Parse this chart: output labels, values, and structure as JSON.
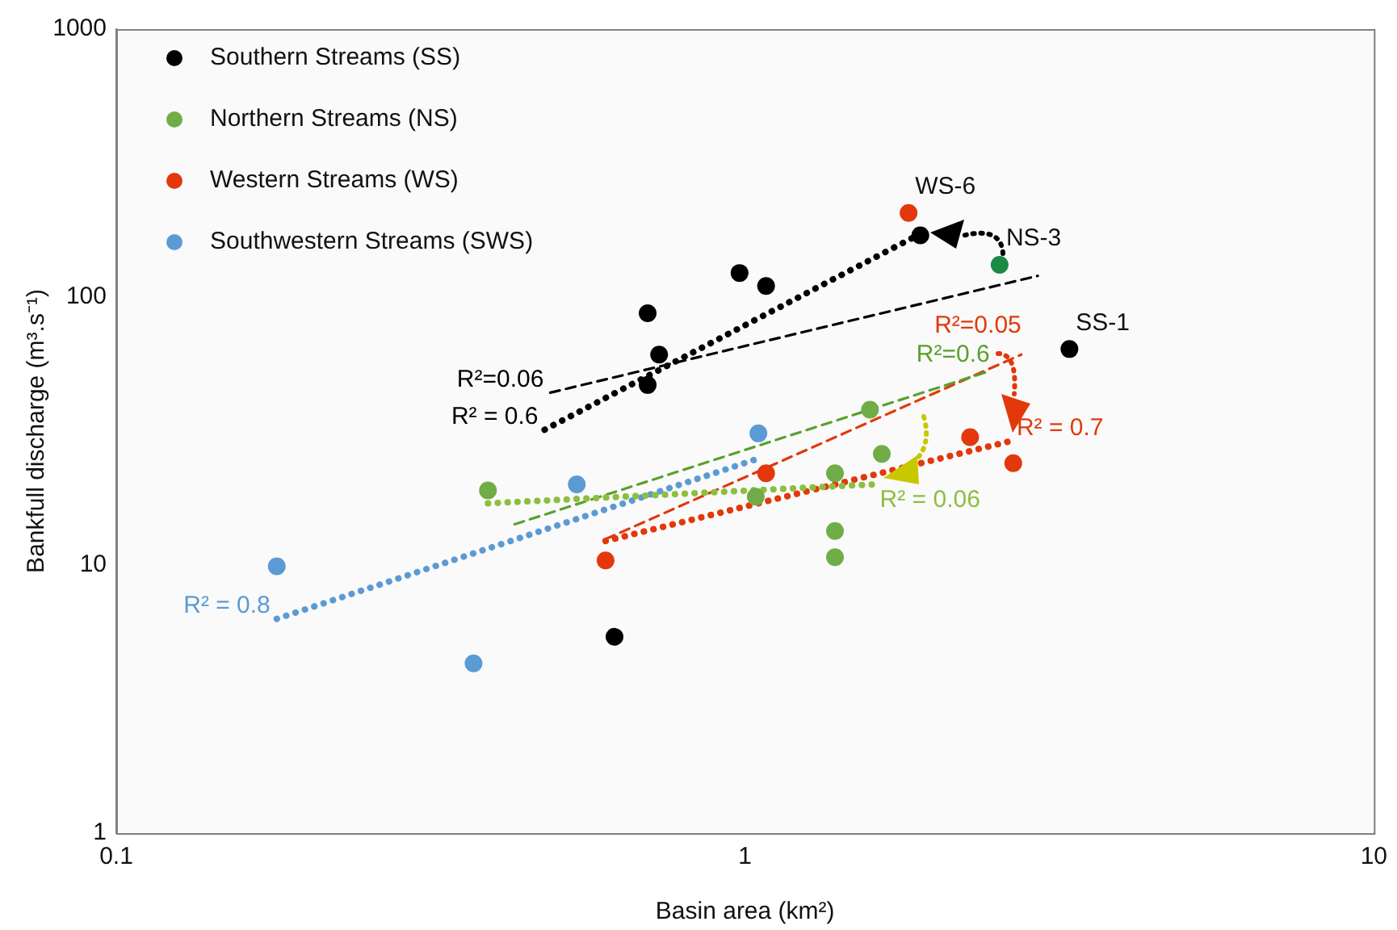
{
  "chart_data": {
    "type": "scatter",
    "xlabel": "Basin area (km²)",
    "ylabel": "Bankfull discharge (m³.s⁻¹)",
    "log": "xy",
    "xlim": [
      0.1,
      10
    ],
    "xticks": [
      0.1,
      1,
      10
    ],
    "ylim": [
      1,
      1000
    ],
    "yticks": [
      1,
      10,
      100,
      1000
    ],
    "grid": false,
    "legend": "top left",
    "marker": "circle",
    "series": [
      {
        "name": "Southern Streams (SS)",
        "color": "#000000",
        "x": [
          0.7,
          0.73,
          0.7,
          0.98,
          1.08,
          1.9,
          3.28,
          0.62
        ],
        "values": [
          87,
          61,
          47,
          123,
          110,
          170,
          64,
          5.4
        ]
      },
      {
        "name": "Northern Streams (NS)",
        "color": "#70ad47",
        "colors": [
          "#70ad47",
          "#70ad47",
          "#70ad47",
          "#70ad47",
          "#70ad47",
          "#70ad47",
          "#70ad47",
          "#1b8a45"
        ],
        "x": [
          0.39,
          1.04,
          1.39,
          1.58,
          1.65,
          1.39,
          1.39,
          2.54
        ],
        "values": [
          19,
          18,
          22,
          38,
          26,
          13.4,
          10.7,
          132
        ]
      },
      {
        "name": "Western Streams (WS)",
        "color": "#e2380b",
        "x": [
          1.82,
          0.6,
          1.08,
          2.28,
          2.67
        ],
        "values": [
          206,
          10.4,
          22,
          30,
          24
        ]
      },
      {
        "name": "Southwestern Streams (SWS)",
        "color": "#5b9bd5",
        "x": [
          0.18,
          0.37,
          0.54,
          1.05
        ],
        "values": [
          9.9,
          4.3,
          20,
          31
        ]
      },
      {
        "name": "R² = 0.6",
        "type": "line",
        "color": "#000000",
        "line_style": "dotted",
        "marker": "none",
        "x": [
          0.48,
          1.88
        ],
        "values": [
          32,
          170
        ]
      },
      {
        "name": "R²=0.06",
        "type": "line",
        "color": "#000000",
        "line_style": "dashed",
        "marker": "none",
        "x": [
          0.49,
          2.92
        ],
        "values": [
          44,
          120
        ]
      },
      {
        "name": "R² = 0.06",
        "type": "line",
        "color": "#8cbf3f",
        "line_style": "dotted",
        "marker": "none",
        "x": [
          0.39,
          1.6
        ],
        "values": [
          17,
          20
        ]
      },
      {
        "name": "R²=0.6",
        "type": "line",
        "color": "#5aa02c",
        "line_style": "dashed",
        "marker": "none",
        "x": [
          0.43,
          2.45
        ],
        "values": [
          14.2,
          53
        ]
      },
      {
        "name": "R²=0.05",
        "type": "line",
        "color": "#e2380b",
        "line_style": "dashed",
        "marker": "none",
        "x": [
          0.6,
          2.75
        ],
        "values": [
          12.5,
          61
        ]
      },
      {
        "name": "R² = 0.7",
        "type": "line",
        "color": "#e2380b",
        "line_style": "dotted",
        "marker": "none",
        "x": [
          0.6,
          2.64
        ],
        "values": [
          12.3,
          29
        ]
      },
      {
        "name": "R² = 0.8",
        "type": "line",
        "color": "#5b9bd5",
        "line_style": "dotted",
        "marker": "none",
        "x": [
          0.18,
          1.04
        ],
        "values": [
          6.3,
          24.8
        ]
      }
    ],
    "annotations": [
      {
        "text": "WS-6",
        "x": 1.82,
        "y": 206
      },
      {
        "text": "NS-3",
        "x": 2.54,
        "y": 132
      },
      {
        "text": "SS-1",
        "x": 3.28,
        "y": 64
      }
    ]
  }
}
